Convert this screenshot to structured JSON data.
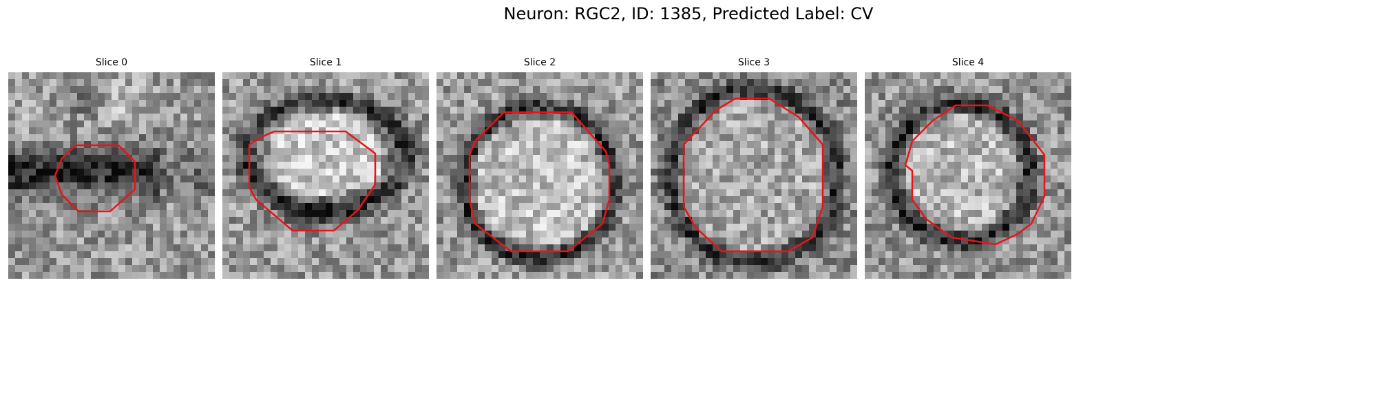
{
  "figure": {
    "title": "Neuron: RGC2, ID: 1385, Predicted Label: CV",
    "contour_color": "#e8141a"
  },
  "panels": [
    {
      "title": "Slice 0",
      "bright_region": "irregular bright/dark texture with dark band across middle",
      "contour": [
        [
          110,
          211
        ],
        [
          172,
          211
        ],
        [
          196,
          235
        ],
        [
          196,
          275
        ],
        [
          160,
          307
        ],
        [
          114,
          307
        ],
        [
          90,
          283
        ],
        [
          80,
          255
        ],
        [
          90,
          230
        ]
      ]
    },
    {
      "title": "Slice 1",
      "bright_region": "bright horizontal oval with dark rim",
      "contour": [
        [
          398,
          191
        ],
        [
          502,
          191
        ],
        [
          545,
          223
        ],
        [
          545,
          268
        ],
        [
          520,
          305
        ],
        [
          485,
          335
        ],
        [
          425,
          335
        ],
        [
          372,
          290
        ],
        [
          362,
          272
        ],
        [
          362,
          210
        ],
        [
          378,
          200
        ]
      ]
    },
    {
      "title": "Slice 2",
      "bright_region": "large bright disk with dark ring",
      "contour": [
        [
          732,
          163
        ],
        [
          830,
          163
        ],
        [
          880,
          220
        ],
        [
          885,
          240
        ],
        [
          885,
          290
        ],
        [
          875,
          325
        ],
        [
          825,
          365
        ],
        [
          742,
          365
        ],
        [
          690,
          325
        ],
        [
          682,
          290
        ],
        [
          682,
          225
        ],
        [
          690,
          205
        ]
      ]
    },
    {
      "title": "Slice 3",
      "bright_region": "large bright circular region",
      "contour": [
        [
          1068,
          143
        ],
        [
          1117,
          143
        ],
        [
          1160,
          170
        ],
        [
          1195,
          210
        ],
        [
          1195,
          300
        ],
        [
          1180,
          345
        ],
        [
          1145,
          365
        ],
        [
          1048,
          365
        ],
        [
          1010,
          330
        ],
        [
          993,
          300
        ],
        [
          993,
          210
        ],
        [
          1040,
          160
        ]
      ]
    },
    {
      "title": "Slice 4",
      "bright_region": "bright disk with dark surrounding ring",
      "contour": [
        [
          1388,
          153
        ],
        [
          1434,
          153
        ],
        [
          1478,
          175
        ],
        [
          1517,
          225
        ],
        [
          1517,
          285
        ],
        [
          1498,
          325
        ],
        [
          1478,
          340
        ],
        [
          1446,
          355
        ],
        [
          1382,
          345
        ],
        [
          1345,
          318
        ],
        [
          1325,
          290
        ],
        [
          1325,
          248
        ],
        [
          1315,
          240
        ],
        [
          1325,
          205
        ],
        [
          1355,
          175
        ]
      ]
    }
  ]
}
